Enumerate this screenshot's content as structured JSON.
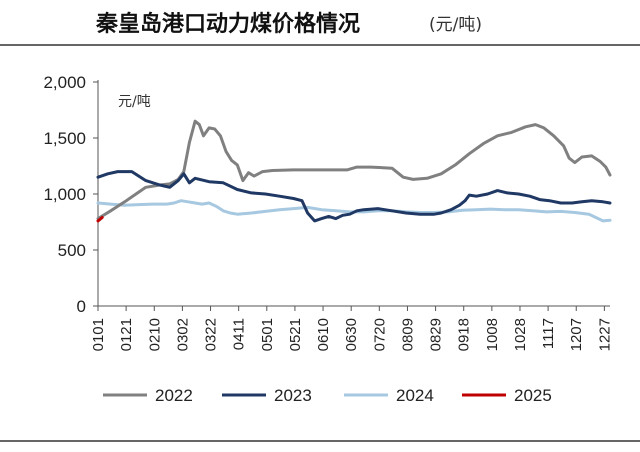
{
  "title": "秦皇岛港口动力煤价格情况",
  "title_unit": "(元/吨)",
  "chart_data": {
    "type": "line",
    "unit_label": "元/吨",
    "ylim": [
      0,
      2000
    ],
    "yticks": [
      "2,000",
      "1,500",
      "1,000",
      "500",
      "0"
    ],
    "ytick_values": [
      2000,
      1500,
      1000,
      500,
      0
    ],
    "xlim": [
      1,
      365
    ],
    "xticks": [
      "0101",
      "0121",
      "0210",
      "0302",
      "0322",
      "0411",
      "0501",
      "0521",
      "0610",
      "0630",
      "0720",
      "0809",
      "0829",
      "0918",
      "1008",
      "1028",
      "1117",
      "1207",
      "1227"
    ],
    "xtick_days": [
      1,
      21,
      41,
      61,
      81,
      101,
      121,
      141,
      161,
      181,
      201,
      221,
      241,
      261,
      281,
      301,
      321,
      341,
      361
    ],
    "x_unit": "day of year",
    "legend_position": "bottom",
    "series": [
      {
        "name": "2022",
        "color": "#808080",
        "points": [
          [
            1,
            780
          ],
          [
            10,
            850
          ],
          [
            20,
            930
          ],
          [
            28,
            1000
          ],
          [
            35,
            1060
          ],
          [
            45,
            1080
          ],
          [
            52,
            1090
          ],
          [
            58,
            1130
          ],
          [
            62,
            1200
          ],
          [
            66,
            1460
          ],
          [
            70,
            1650
          ],
          [
            73,
            1620
          ],
          [
            76,
            1520
          ],
          [
            80,
            1590
          ],
          [
            84,
            1580
          ],
          [
            88,
            1520
          ],
          [
            92,
            1380
          ],
          [
            96,
            1300
          ],
          [
            100,
            1260
          ],
          [
            104,
            1120
          ],
          [
            108,
            1190
          ],
          [
            112,
            1160
          ],
          [
            118,
            1200
          ],
          [
            125,
            1210
          ],
          [
            140,
            1215
          ],
          [
            160,
            1215
          ],
          [
            178,
            1215
          ],
          [
            185,
            1240
          ],
          [
            195,
            1240
          ],
          [
            210,
            1230
          ],
          [
            218,
            1150
          ],
          [
            225,
            1130
          ],
          [
            235,
            1140
          ],
          [
            245,
            1180
          ],
          [
            255,
            1260
          ],
          [
            265,
            1360
          ],
          [
            275,
            1450
          ],
          [
            285,
            1520
          ],
          [
            295,
            1550
          ],
          [
            305,
            1600
          ],
          [
            312,
            1620
          ],
          [
            318,
            1590
          ],
          [
            325,
            1520
          ],
          [
            332,
            1430
          ],
          [
            336,
            1320
          ],
          [
            340,
            1280
          ],
          [
            345,
            1330
          ],
          [
            352,
            1340
          ],
          [
            358,
            1290
          ],
          [
            362,
            1240
          ],
          [
            365,
            1170
          ]
        ]
      },
      {
        "name": "2023",
        "color": "#1f3864",
        "points": [
          [
            1,
            1150
          ],
          [
            8,
            1180
          ],
          [
            15,
            1200
          ],
          [
            25,
            1200
          ],
          [
            35,
            1120
          ],
          [
            45,
            1080
          ],
          [
            52,
            1060
          ],
          [
            58,
            1120
          ],
          [
            62,
            1180
          ],
          [
            66,
            1100
          ],
          [
            70,
            1140
          ],
          [
            80,
            1110
          ],
          [
            90,
            1100
          ],
          [
            100,
            1040
          ],
          [
            110,
            1010
          ],
          [
            120,
            1000
          ],
          [
            130,
            980
          ],
          [
            140,
            960
          ],
          [
            146,
            940
          ],
          [
            150,
            830
          ],
          [
            155,
            760
          ],
          [
            160,
            780
          ],
          [
            165,
            800
          ],
          [
            170,
            780
          ],
          [
            175,
            810
          ],
          [
            180,
            820
          ],
          [
            185,
            850
          ],
          [
            190,
            860
          ],
          [
            200,
            870
          ],
          [
            210,
            850
          ],
          [
            220,
            830
          ],
          [
            230,
            820
          ],
          [
            240,
            820
          ],
          [
            245,
            830
          ],
          [
            252,
            860
          ],
          [
            258,
            900
          ],
          [
            262,
            940
          ],
          [
            265,
            990
          ],
          [
            270,
            980
          ],
          [
            278,
            1000
          ],
          [
            285,
            1030
          ],
          [
            292,
            1010
          ],
          [
            300,
            1000
          ],
          [
            308,
            980
          ],
          [
            315,
            950
          ],
          [
            322,
            940
          ],
          [
            330,
            920
          ],
          [
            338,
            920
          ],
          [
            345,
            930
          ],
          [
            352,
            940
          ],
          [
            360,
            930
          ],
          [
            365,
            920
          ]
        ]
      },
      {
        "name": "2024",
        "color": "#a6c8e0",
        "points": [
          [
            1,
            920
          ],
          [
            10,
            910
          ],
          [
            20,
            900
          ],
          [
            30,
            905
          ],
          [
            40,
            910
          ],
          [
            50,
            910
          ],
          [
            55,
            920
          ],
          [
            60,
            940
          ],
          [
            65,
            930
          ],
          [
            70,
            920
          ],
          [
            75,
            910
          ],
          [
            80,
            920
          ],
          [
            85,
            890
          ],
          [
            90,
            850
          ],
          [
            95,
            830
          ],
          [
            100,
            820
          ],
          [
            110,
            830
          ],
          [
            120,
            845
          ],
          [
            130,
            860
          ],
          [
            140,
            870
          ],
          [
            150,
            880
          ],
          [
            160,
            860
          ],
          [
            170,
            850
          ],
          [
            180,
            840
          ],
          [
            190,
            840
          ],
          [
            200,
            850
          ],
          [
            210,
            850
          ],
          [
            220,
            840
          ],
          [
            230,
            835
          ],
          [
            240,
            835
          ],
          [
            250,
            840
          ],
          [
            260,
            855
          ],
          [
            270,
            860
          ],
          [
            280,
            865
          ],
          [
            290,
            860
          ],
          [
            300,
            860
          ],
          [
            310,
            850
          ],
          [
            320,
            840
          ],
          [
            330,
            845
          ],
          [
            340,
            835
          ],
          [
            350,
            820
          ],
          [
            355,
            790
          ],
          [
            360,
            760
          ],
          [
            365,
            765
          ]
        ]
      },
      {
        "name": "2025",
        "color": "#c00000",
        "points": [
          [
            1,
            760
          ],
          [
            4,
            790
          ]
        ]
      }
    ]
  }
}
